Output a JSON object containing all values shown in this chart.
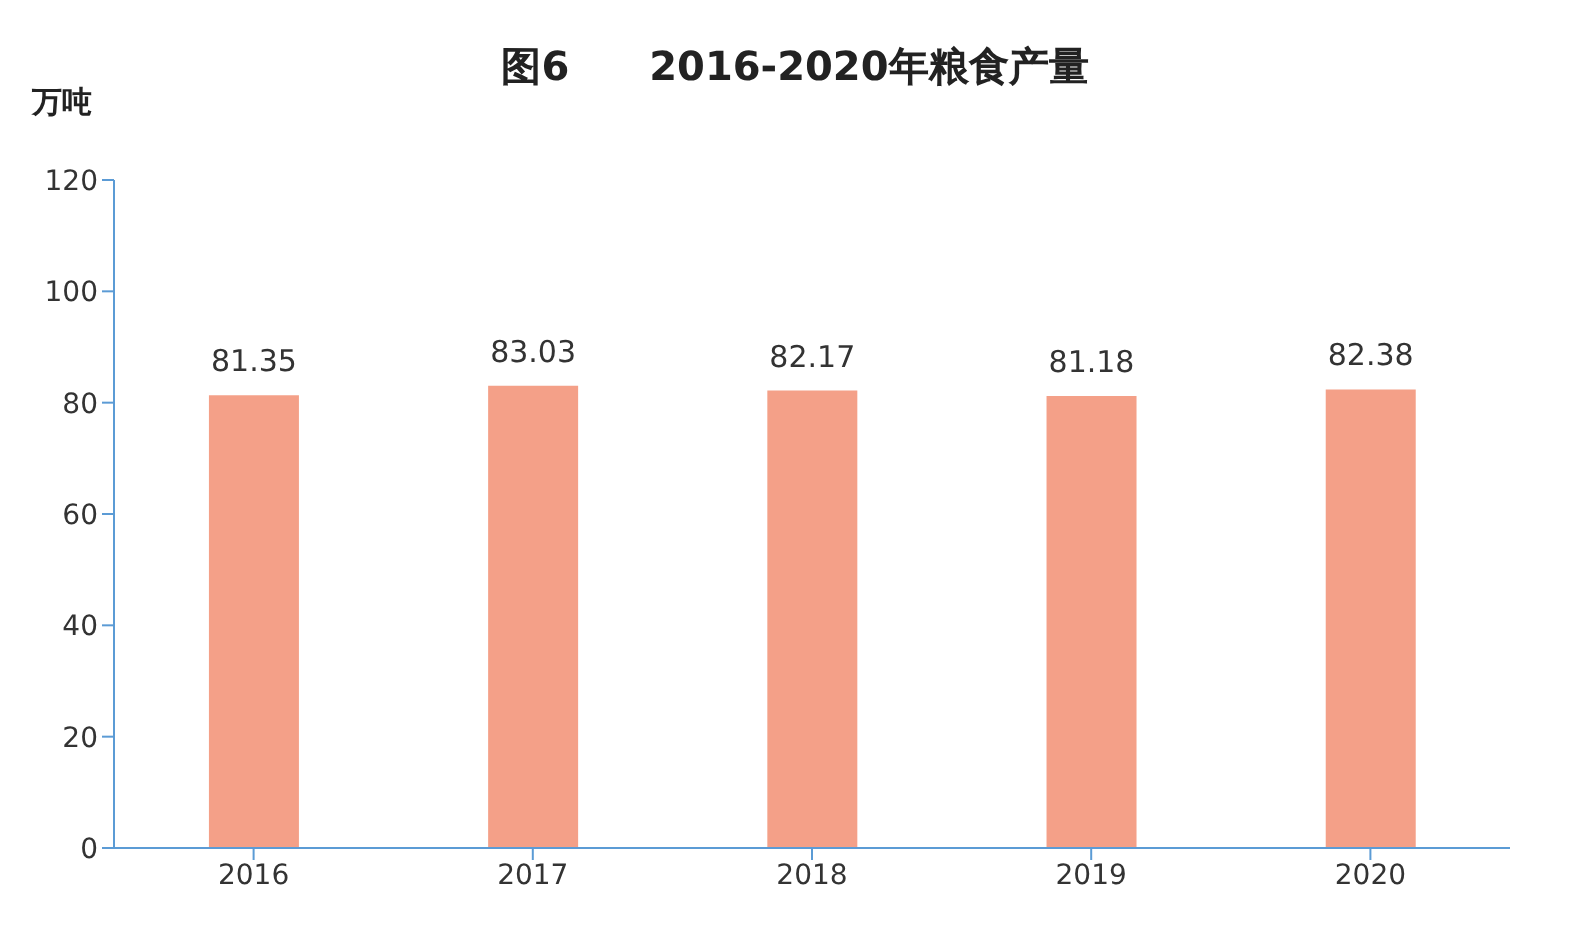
{
  "chart_data": {
    "type": "bar",
    "title": "图6　　2016-2020年粮食产量",
    "ylabel": "万吨",
    "categories": [
      "2016",
      "2017",
      "2018",
      "2019",
      "2020"
    ],
    "values": [
      81.35,
      83.03,
      82.17,
      81.18,
      82.38
    ],
    "color": "#f4a088",
    "ylim": [
      0,
      120
    ],
    "yticks": [
      0,
      20,
      40,
      60,
      80,
      100,
      120
    ],
    "data_labels": true
  }
}
